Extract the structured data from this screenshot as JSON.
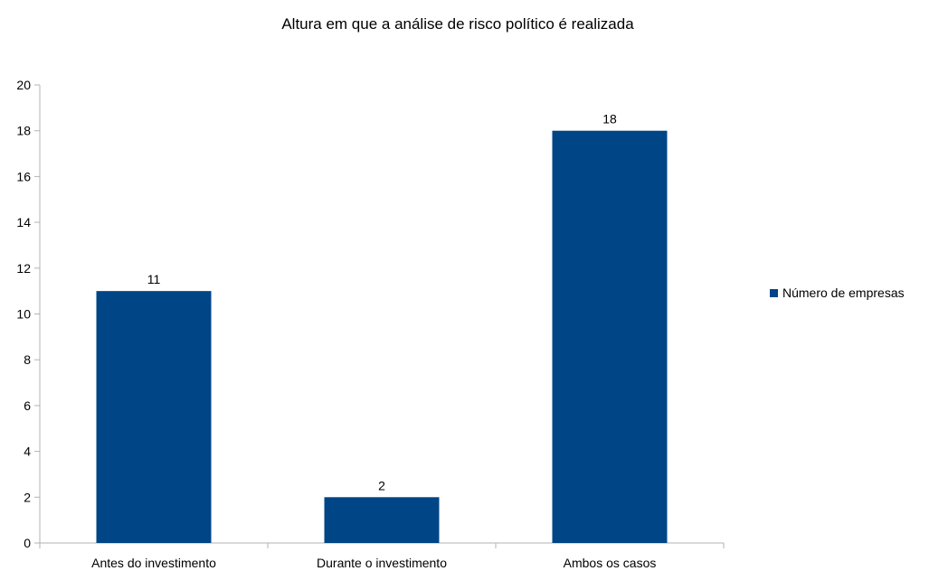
{
  "chart_data": {
    "type": "bar",
    "title": "Altura em que a análise de risco político é realizada",
    "categories": [
      "Antes do investimento",
      "Durante o investimento",
      "Ambos os casos"
    ],
    "series": [
      {
        "name": "Número de empresas",
        "values": [
          11,
          2,
          18
        ],
        "color": "#004586"
      }
    ],
    "data_labels": [
      "11",
      "2",
      "18"
    ],
    "ylim": [
      0,
      20
    ],
    "yticks": [
      0,
      2,
      4,
      6,
      8,
      10,
      12,
      14,
      16,
      18,
      20
    ],
    "grid": false,
    "legend_position": "right"
  }
}
